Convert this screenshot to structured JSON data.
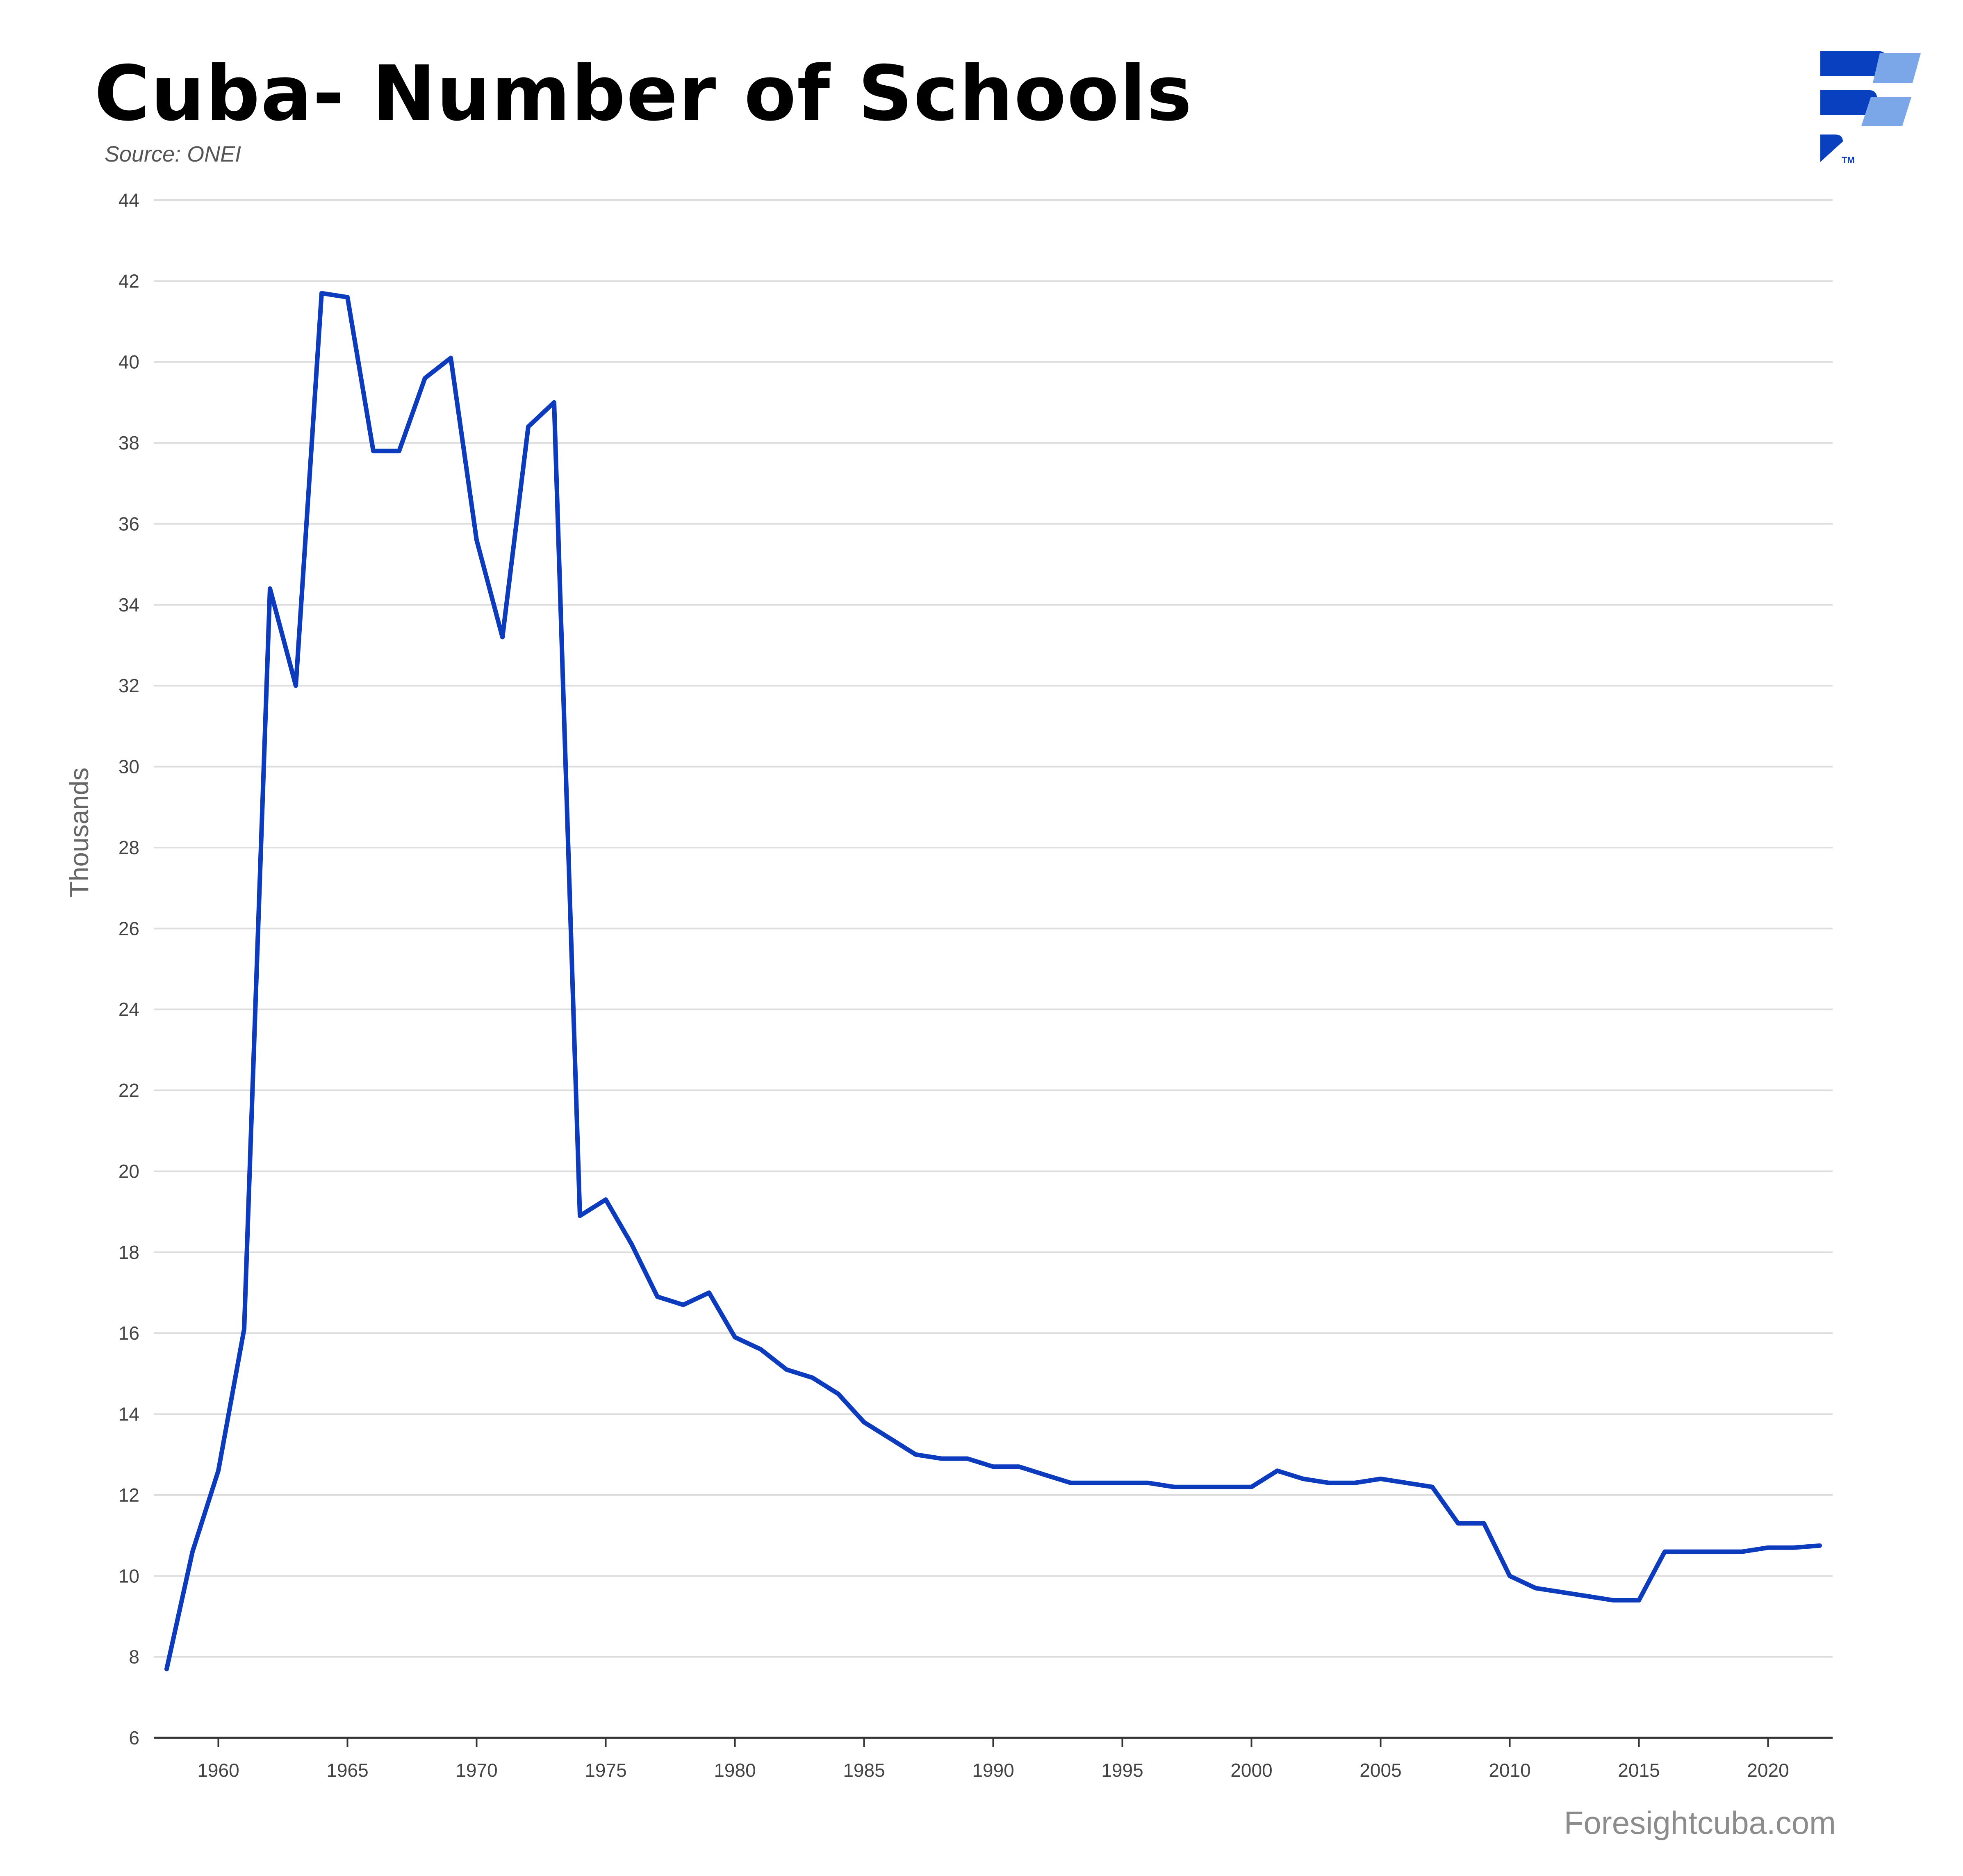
{
  "header": {
    "title": "Cuba- Number of Schools",
    "source": "Source: ONEI"
  },
  "footer": {
    "credit": "Foresightcuba.com"
  },
  "logo": {
    "icon": "foresight-cuba-logo",
    "trademark": "TM",
    "colors": [
      "#0840c0",
      "#7ba7e8"
    ]
  },
  "chart_data": {
    "type": "line",
    "title": "Cuba- Number of Schools",
    "xlabel": "",
    "ylabel": "Thousands",
    "ylim": [
      6,
      44
    ],
    "xlim": [
      1957.5,
      2022.5
    ],
    "yticks": [
      6,
      8,
      10,
      12,
      14,
      16,
      18,
      20,
      22,
      24,
      26,
      28,
      30,
      32,
      34,
      36,
      38,
      40,
      42,
      44
    ],
    "xticks": [
      1960,
      1965,
      1970,
      1975,
      1980,
      1985,
      1990,
      1995,
      2000,
      2005,
      2010,
      2015,
      2020
    ],
    "grid": "horizontal",
    "line_color": "#0d3bbd",
    "series": [
      {
        "x": [
          1958,
          1959,
          1960,
          1961,
          1962,
          1963,
          1964,
          1965,
          1966,
          1967,
          1968,
          1969,
          1970,
          1971,
          1972,
          1973,
          1974,
          1975,
          1976,
          1977,
          1978,
          1979,
          1980,
          1981,
          1982,
          1983,
          1984,
          1985,
          1986,
          1987,
          1988,
          1989,
          1990,
          1991,
          1992,
          1993,
          1994,
          1995,
          1996,
          1997,
          1998,
          1999,
          2000,
          2001,
          2002,
          2003,
          2004,
          2005,
          2006,
          2007,
          2008,
          2009,
          2010,
          2011,
          2012,
          2013,
          2014,
          2015,
          2016,
          2017,
          2018,
          2019,
          2020,
          2021,
          2022
        ],
        "values": [
          7.7,
          10.6,
          12.6,
          16.1,
          34.4,
          32.0,
          41.7,
          41.6,
          37.8,
          37.8,
          39.6,
          40.1,
          35.6,
          33.2,
          38.4,
          39.0,
          18.9,
          19.3,
          18.2,
          16.9,
          16.7,
          17.0,
          15.9,
          15.6,
          15.1,
          14.9,
          14.5,
          13.8,
          13.4,
          13.0,
          12.9,
          12.9,
          12.7,
          12.7,
          12.5,
          12.3,
          12.3,
          12.3,
          12.3,
          12.2,
          12.2,
          12.2,
          12.2,
          12.6,
          12.4,
          12.3,
          12.3,
          12.4,
          12.3,
          12.2,
          11.3,
          11.3,
          10.0,
          9.7,
          9.6,
          9.5,
          9.4,
          9.4,
          10.6,
          10.6,
          10.6,
          10.6,
          10.7,
          10.7,
          10.75
        ]
      }
    ]
  }
}
